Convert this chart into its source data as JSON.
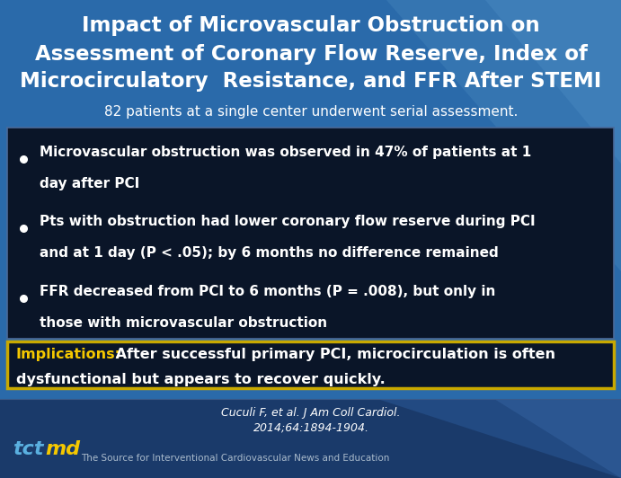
{
  "title_line1": "Impact of Microvascular Obstruction on",
  "title_line2": "Assessment of Coronary Flow Reserve, Index of",
  "title_line3": "Microcirculatory  Resistance, and FFR After STEMI",
  "subtitle": "82 patients at a single center underwent serial assessment.",
  "bullet1_line1": "Microvascular obstruction was observed in 47% of patients at 1",
  "bullet1_line2": "day after PCI",
  "bullet2_line1": "Pts with obstruction had lower coronary flow reserve during PCI",
  "bullet2_line2": "and at 1 day (P < .05); by 6 months no difference remained",
  "bullet3_line1": "FFR decreased from PCI to 6 months (P = .008), but only in",
  "bullet3_line2": "those with microvascular obstruction",
  "implications_label": "Implications:",
  "implications_line1": " After successful primary PCI, microcirculation is often",
  "implications_line2": "dysfunctional but appears to recover quickly.",
  "citation_line1": "Cuculi F, et al. J Am Coll Cardiol.",
  "citation_line2": "2014;64:1894-1904.",
  "footer_text": "The Source for Interventional Cardiovascular News and Education",
  "bg_color": "#2a6aaa",
  "bg_dark": "#0d1f3c",
  "title_color": "#ffffff",
  "subtitle_color": "#ffffff",
  "bullet_color": "#ffffff",
  "implications_label_color": "#f5c800",
  "implications_text_color": "#ffffff",
  "citation_color": "#ffffff",
  "box_bg_color": "#0a1528",
  "box_border_color": "#4a6a9a",
  "implications_bg": "#0a1528",
  "implications_border": "#c8a800",
  "tct_color": "#5ab0e0",
  "md_color": "#f5c800",
  "footer_color": "#aabbcc"
}
